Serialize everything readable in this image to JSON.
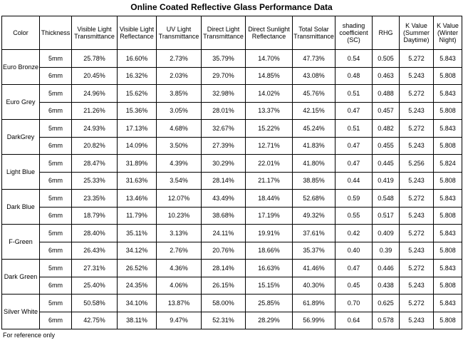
{
  "title": "Online Coated Reflective Glass Performance Data",
  "headers": [
    "Color",
    "Thickness",
    "Visible Light Transmittance",
    "Visible Light Reflectance",
    "UV Light Transmittance",
    "Direct Light Transmittance",
    "Direct Sunlight Reflectance",
    "Total Solar Transmittance",
    "shading coefficient (SC)",
    "RHG",
    "K Value (Summer Daytime)",
    "K Value (Winter Night)"
  ],
  "groups": [
    {
      "color": "Euro Bronze",
      "rows": [
        [
          "5mm",
          "25.78%",
          "16.60%",
          "2.73%",
          "35.79%",
          "14.70%",
          "47.73%",
          "0.54",
          "0.505",
          "5.272",
          "5.843"
        ],
        [
          "6mm",
          "20.45%",
          "16.32%",
          "2.03%",
          "29.70%",
          "14.85%",
          "43.08%",
          "0.48",
          "0.463",
          "5.243",
          "5.808"
        ]
      ]
    },
    {
      "color": "Euro Grey",
      "rows": [
        [
          "5mm",
          "24.96%",
          "15.62%",
          "3.85%",
          "32.98%",
          "14.02%",
          "45.76%",
          "0.51",
          "0.488",
          "5.272",
          "5.843"
        ],
        [
          "6mm",
          "21.26%",
          "15.36%",
          "3.05%",
          "28.01%",
          "13.37%",
          "42.15%",
          "0.47",
          "0.457",
          "5.243",
          "5.808"
        ]
      ]
    },
    {
      "color": "DarkGrey",
      "rows": [
        [
          "5mm",
          "24.93%",
          "17.13%",
          "4.68%",
          "32.67%",
          "15.22%",
          "45.24%",
          "0.51",
          "0.482",
          "5.272",
          "5.843"
        ],
        [
          "6mm",
          "20.82%",
          "14.09%",
          "3.50%",
          "27.39%",
          "12.71%",
          "41.83%",
          "0.47",
          "0.455",
          "5.243",
          "5.808"
        ]
      ]
    },
    {
      "color": "Light Blue",
      "rows": [
        [
          "5mm",
          "28.47%",
          "31.89%",
          "4.39%",
          "30.29%",
          "22.01%",
          "41.80%",
          "0.47",
          "0.445",
          "5.256",
          "5.824"
        ],
        [
          "6mm",
          "25.33%",
          "31.63%",
          "3.54%",
          "28.14%",
          "21.17%",
          "38.85%",
          "0.44",
          "0.419",
          "5.243",
          "5.808"
        ]
      ]
    },
    {
      "color": "Dark Blue",
      "rows": [
        [
          "5mm",
          "23.35%",
          "13.46%",
          "12.07%",
          "43.49%",
          "18.44%",
          "52.68%",
          "0.59",
          "0.548",
          "5.272",
          "5.843"
        ],
        [
          "6mm",
          "18.79%",
          "11.79%",
          "10.23%",
          "38.68%",
          "17.19%",
          "49.32%",
          "0.55",
          "0.517",
          "5.243",
          "5.808"
        ]
      ]
    },
    {
      "color": "F-Green",
      "rows": [
        [
          "5mm",
          "28.40%",
          "35.11%",
          "3.13%",
          "24.11%",
          "19.91%",
          "37.61%",
          "0.42",
          "0.409",
          "5.272",
          "5.843"
        ],
        [
          "6mm",
          "26.43%",
          "34.12%",
          "2.76%",
          "20.76%",
          "18.66%",
          "35.37%",
          "0.40",
          "0.39",
          "5.243",
          "5.808"
        ]
      ]
    },
    {
      "color": "Dark Green",
      "rows": [
        [
          "5mm",
          "27.31%",
          "26.52%",
          "4.36%",
          "28.14%",
          "16.63%",
          "41.46%",
          "0.47",
          "0.446",
          "5.272",
          "5.843"
        ],
        [
          "6mm",
          "25.40%",
          "24.35%",
          "4.06%",
          "26.15%",
          "15.15%",
          "40.30%",
          "0.45",
          "0.438",
          "5.243",
          "5.808"
        ]
      ]
    },
    {
      "color": "Silver White",
      "rows": [
        [
          "5mm",
          "50.58%",
          "34.10%",
          "13.87%",
          "58.00%",
          "25.85%",
          "61.89%",
          "0.70",
          "0.625",
          "5.272",
          "5.843"
        ],
        [
          "6mm",
          "42.75%",
          "38.11%",
          "9.47%",
          "52.31%",
          "28.29%",
          "56.99%",
          "0.64",
          "0.578",
          "5.243",
          "5.808"
        ]
      ]
    }
  ],
  "note": "For reference only"
}
